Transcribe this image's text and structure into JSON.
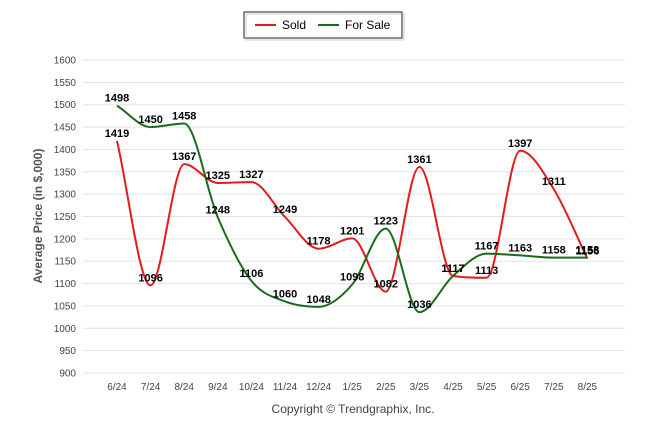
{
  "chart_data": {
    "type": "line",
    "categories": [
      "6/24",
      "7/24",
      "8/24",
      "9/24",
      "10/24",
      "11/24",
      "12/24",
      "1/25",
      "2/25",
      "3/25",
      "4/25",
      "5/25",
      "6/25",
      "7/25",
      "8/25"
    ],
    "series": [
      {
        "name": "Sold",
        "color": "#e41a1c",
        "values": [
          1419,
          1096,
          1367,
          1325,
          1327,
          1249,
          1178,
          1201,
          1082,
          1361,
          1117,
          1113,
          1397,
          1311,
          1156
        ]
      },
      {
        "name": "For Sale",
        "color": "#1a6b1a",
        "values": [
          1498,
          1450,
          1458,
          1248,
          1106,
          1060,
          1048,
          1098,
          1223,
          1036,
          1117,
          1167,
          1163,
          1158,
          1158
        ]
      }
    ],
    "ylabel": "Average Price (in $,000)",
    "xlabel": "",
    "ylim": [
      900,
      1600
    ],
    "yticks": [
      900,
      950,
      1000,
      1050,
      1100,
      1150,
      1200,
      1250,
      1300,
      1350,
      1400,
      1450,
      1500,
      1550,
      1600
    ],
    "grid": true,
    "legend": "top-center"
  },
  "footer": {
    "text": "Copyright © Trendgraphix, Inc."
  }
}
